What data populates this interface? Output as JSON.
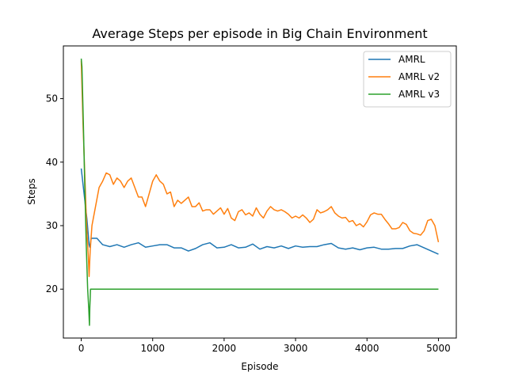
{
  "chart_data": {
    "type": "line",
    "title": "Average Steps per episode in Big Chain Environment",
    "xlabel": "Episode",
    "ylabel": "Steps",
    "xlim": [
      -250,
      5250
    ],
    "ylim": [
      12.3,
      58.3
    ],
    "xticks": [
      0,
      1000,
      2000,
      3000,
      4000,
      5000
    ],
    "yticks": [
      20,
      30,
      40,
      50
    ],
    "grid": false,
    "legend_position": "top-right",
    "series": [
      {
        "name": "AMRL",
        "color": "#1f77b4",
        "points": [
          [
            0,
            39
          ],
          [
            40,
            35
          ],
          [
            80,
            31
          ],
          [
            110,
            27
          ],
          [
            120,
            26.6
          ],
          [
            140,
            28
          ],
          [
            180,
            28
          ],
          [
            220,
            28
          ],
          [
            260,
            27.5
          ],
          [
            300,
            27
          ],
          [
            400,
            26.7
          ],
          [
            500,
            27
          ],
          [
            600,
            26.6
          ],
          [
            700,
            27
          ],
          [
            800,
            27.3
          ],
          [
            900,
            26.6
          ],
          [
            1000,
            26.8
          ],
          [
            1100,
            27
          ],
          [
            1200,
            27
          ],
          [
            1300,
            26.5
          ],
          [
            1400,
            26.5
          ],
          [
            1500,
            26
          ],
          [
            1600,
            26.4
          ],
          [
            1700,
            27
          ],
          [
            1800,
            27.3
          ],
          [
            1900,
            26.5
          ],
          [
            2000,
            26.6
          ],
          [
            2100,
            27
          ],
          [
            2200,
            26.5
          ],
          [
            2300,
            26.6
          ],
          [
            2400,
            27.1
          ],
          [
            2500,
            26.3
          ],
          [
            2600,
            26.7
          ],
          [
            2700,
            26.5
          ],
          [
            2800,
            26.8
          ],
          [
            2900,
            26.4
          ],
          [
            3000,
            26.8
          ],
          [
            3100,
            26.6
          ],
          [
            3200,
            26.7
          ],
          [
            3300,
            26.7
          ],
          [
            3400,
            27
          ],
          [
            3500,
            27.2
          ],
          [
            3600,
            26.5
          ],
          [
            3700,
            26.3
          ],
          [
            3800,
            26.5
          ],
          [
            3900,
            26.2
          ],
          [
            4000,
            26.5
          ],
          [
            4100,
            26.6
          ],
          [
            4200,
            26.3
          ],
          [
            4300,
            26.3
          ],
          [
            4400,
            26.4
          ],
          [
            4500,
            26.4
          ],
          [
            4600,
            26.8
          ],
          [
            4700,
            27
          ],
          [
            4800,
            26.5
          ],
          [
            4900,
            26
          ],
          [
            5000,
            25.5
          ]
        ]
      },
      {
        "name": "AMRL v2",
        "color": "#ff7f0e",
        "points": [
          [
            0,
            56
          ],
          [
            25,
            46
          ],
          [
            50,
            38
          ],
          [
            75,
            30
          ],
          [
            100,
            25
          ],
          [
            110,
            22
          ],
          [
            125,
            26
          ],
          [
            150,
            30
          ],
          [
            200,
            33
          ],
          [
            250,
            36
          ],
          [
            300,
            37
          ],
          [
            350,
            38.3
          ],
          [
            400,
            38
          ],
          [
            450,
            36.5
          ],
          [
            500,
            37.5
          ],
          [
            550,
            37
          ],
          [
            600,
            36
          ],
          [
            650,
            37
          ],
          [
            700,
            37.5
          ],
          [
            750,
            36
          ],
          [
            800,
            34.5
          ],
          [
            850,
            34.5
          ],
          [
            900,
            33
          ],
          [
            950,
            35
          ],
          [
            1000,
            37
          ],
          [
            1050,
            38
          ],
          [
            1100,
            37
          ],
          [
            1150,
            36.5
          ],
          [
            1200,
            35
          ],
          [
            1250,
            35.3
          ],
          [
            1300,
            33
          ],
          [
            1350,
            34
          ],
          [
            1400,
            33.5
          ],
          [
            1450,
            34
          ],
          [
            1500,
            34.5
          ],
          [
            1550,
            33
          ],
          [
            1600,
            33
          ],
          [
            1650,
            33.6
          ],
          [
            1700,
            32.3
          ],
          [
            1750,
            32.5
          ],
          [
            1800,
            32.5
          ],
          [
            1850,
            31.8
          ],
          [
            1900,
            32.3
          ],
          [
            1950,
            32.8
          ],
          [
            2000,
            31.8
          ],
          [
            2050,
            32.7
          ],
          [
            2100,
            31.2
          ],
          [
            2150,
            30.8
          ],
          [
            2200,
            32.2
          ],
          [
            2250,
            32.5
          ],
          [
            2300,
            31.7
          ],
          [
            2350,
            32
          ],
          [
            2400,
            31.5
          ],
          [
            2450,
            32.8
          ],
          [
            2500,
            31.8
          ],
          [
            2550,
            31.2
          ],
          [
            2600,
            32.3
          ],
          [
            2650,
            33
          ],
          [
            2700,
            32.5
          ],
          [
            2750,
            32.3
          ],
          [
            2800,
            32.5
          ],
          [
            2850,
            32.2
          ],
          [
            2900,
            31.8
          ],
          [
            2950,
            31.2
          ],
          [
            3000,
            31.5
          ],
          [
            3050,
            31.2
          ],
          [
            3100,
            31.7
          ],
          [
            3150,
            31.2
          ],
          [
            3200,
            30.5
          ],
          [
            3250,
            31
          ],
          [
            3300,
            32.5
          ],
          [
            3350,
            32
          ],
          [
            3400,
            32.2
          ],
          [
            3450,
            32.5
          ],
          [
            3500,
            33
          ],
          [
            3550,
            32
          ],
          [
            3600,
            31.5
          ],
          [
            3650,
            31.2
          ],
          [
            3700,
            31.3
          ],
          [
            3750,
            30.6
          ],
          [
            3800,
            30.8
          ],
          [
            3850,
            30
          ],
          [
            3900,
            30.3
          ],
          [
            3950,
            29.8
          ],
          [
            4000,
            30.6
          ],
          [
            4050,
            31.7
          ],
          [
            4100,
            32
          ],
          [
            4150,
            31.8
          ],
          [
            4200,
            31.8
          ],
          [
            4250,
            31
          ],
          [
            4300,
            30.3
          ],
          [
            4350,
            29.5
          ],
          [
            4400,
            29.5
          ],
          [
            4450,
            29.7
          ],
          [
            4500,
            30.5
          ],
          [
            4550,
            30.2
          ],
          [
            4600,
            29.2
          ],
          [
            4650,
            28.8
          ],
          [
            4700,
            28.7
          ],
          [
            4750,
            28.5
          ],
          [
            4800,
            29.2
          ],
          [
            4850,
            30.8
          ],
          [
            4900,
            31
          ],
          [
            4950,
            30
          ],
          [
            5000,
            27.4
          ]
        ]
      },
      {
        "name": "AMRL v3",
        "color": "#2ca02c",
        "points": [
          [
            0,
            56.3
          ],
          [
            10,
            55
          ],
          [
            30,
            46
          ],
          [
            50,
            36
          ],
          [
            70,
            27
          ],
          [
            90,
            20
          ],
          [
            105,
            17
          ],
          [
            115,
            14.3
          ],
          [
            120,
            17
          ],
          [
            130,
            20
          ],
          [
            200,
            20
          ],
          [
            500,
            20
          ],
          [
            1000,
            20
          ],
          [
            2000,
            20
          ],
          [
            3000,
            20
          ],
          [
            4000,
            20
          ],
          [
            5000,
            20
          ]
        ]
      }
    ]
  }
}
